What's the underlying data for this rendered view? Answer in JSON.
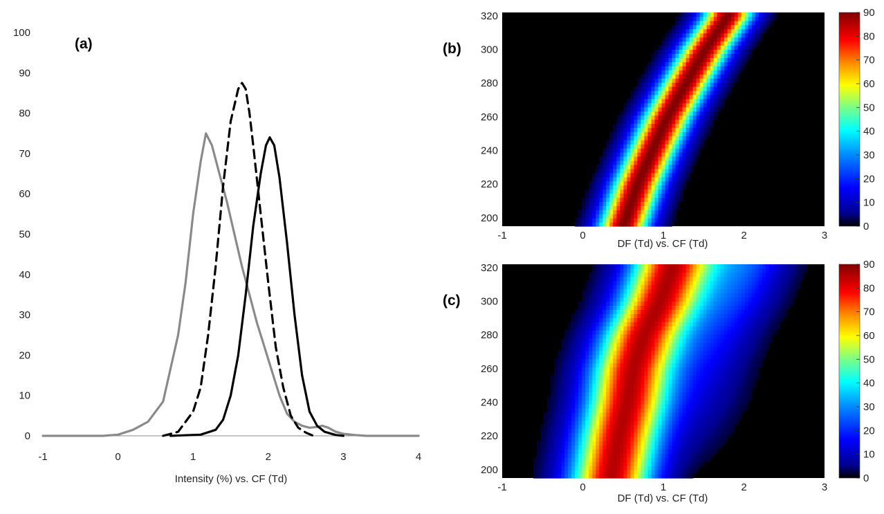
{
  "chart_data": [
    {
      "panel_label": "(a)",
      "type": "line",
      "xlabel": "Intensity (%) vs. CF (Td)",
      "ylabel": "",
      "xlim": [
        -1,
        4
      ],
      "ylim": [
        0,
        100
      ],
      "xticks": [
        "-1",
        "0",
        "1",
        "2",
        "3",
        "4"
      ],
      "yticks": [
        "0",
        "10",
        "20",
        "30",
        "40",
        "50",
        "60",
        "70",
        "80",
        "90",
        "100"
      ],
      "legend": "none",
      "series": [
        {
          "style": "solid-gray",
          "color": "#8a8a8a",
          "x": [
            -1.0,
            -0.2,
            0.0,
            0.2,
            0.4,
            0.6,
            0.8,
            0.9,
            1.0,
            1.1,
            1.17,
            1.25,
            1.35,
            1.45,
            1.55,
            1.65,
            1.75,
            1.85,
            1.95,
            2.05,
            2.15,
            2.25,
            2.35,
            2.45,
            2.55,
            2.65,
            2.72,
            2.8,
            2.9,
            3.0,
            3.15,
            3.3,
            4.0
          ],
          "y": [
            0,
            0,
            0.3,
            1.5,
            3.5,
            8.5,
            25,
            38,
            55,
            68,
            75,
            72,
            65,
            58,
            50,
            42,
            35,
            28,
            22,
            16,
            10,
            5.5,
            3.5,
            2.5,
            2.0,
            2.2,
            2.5,
            2.0,
            1.0,
            0.5,
            0.2,
            0,
            0
          ]
        },
        {
          "style": "dashed-black",
          "color": "#000000",
          "x": [
            0.6,
            0.8,
            1.0,
            1.1,
            1.2,
            1.3,
            1.4,
            1.5,
            1.6,
            1.65,
            1.7,
            1.75,
            1.8,
            1.9,
            2.0,
            2.1,
            2.2,
            2.3,
            2.4,
            2.5,
            2.6
          ],
          "y": [
            0,
            1.0,
            6,
            12,
            25,
            42,
            62,
            78,
            86,
            87.5,
            86,
            80,
            72,
            55,
            38,
            22,
            12,
            5,
            2,
            0.8,
            0
          ]
        },
        {
          "style": "solid-black",
          "color": "#000000",
          "x": [
            0.7,
            1.1,
            1.3,
            1.4,
            1.5,
            1.6,
            1.7,
            1.8,
            1.9,
            1.97,
            2.02,
            2.08,
            2.15,
            2.25,
            2.35,
            2.45,
            2.55,
            2.65,
            2.75,
            2.9,
            3.0
          ],
          "y": [
            0,
            0.3,
            1.5,
            4,
            10,
            20,
            35,
            52,
            65,
            72,
            74,
            72,
            64,
            48,
            30,
            15,
            6,
            2.5,
            1,
            0.2,
            0
          ]
        }
      ]
    },
    {
      "panel_label": "(b)",
      "type": "heatmap",
      "xlabel": "DF (Td) vs. CF (Td)",
      "xlim": [
        -1,
        3
      ],
      "ylim": [
        195,
        322
      ],
      "xticks": [
        "-1",
        "0",
        "1",
        "2",
        "3"
      ],
      "yticks": [
        "200",
        "220",
        "240",
        "260",
        "280",
        "300",
        "320"
      ],
      "colorbar": {
        "range": [
          0,
          90
        ],
        "ticks": [
          "0",
          "10",
          "20",
          "30",
          "40",
          "50",
          "60",
          "70",
          "80",
          "90"
        ]
      },
      "ridge": {
        "y": [
          195,
          220,
          240,
          260,
          280,
          300,
          320
        ],
        "center_x": [
          0.5,
          0.68,
          0.86,
          1.05,
          1.28,
          1.52,
          1.8
        ],
        "width_sigma": 0.22,
        "peak_value": 90
      }
    },
    {
      "panel_label": "(c)",
      "type": "heatmap",
      "xlabel": "DF (Td) vs. CF (Td)",
      "xlim": [
        -1,
        3
      ],
      "ylim": [
        195,
        322
      ],
      "xticks": [
        "-1",
        "0",
        "1",
        "2",
        "3"
      ],
      "yticks": [
        "200",
        "220",
        "240",
        "260",
        "280",
        "300",
        "320"
      ],
      "colorbar": {
        "range": [
          0,
          90
        ],
        "ticks": [
          "0",
          "10",
          "20",
          "30",
          "40",
          "50",
          "60",
          "70",
          "80",
          "90"
        ]
      },
      "ridge": {
        "y": [
          195,
          220,
          240,
          260,
          280,
          300,
          320
        ],
        "center_x": [
          0.35,
          0.45,
          0.55,
          0.62,
          0.75,
          0.95,
          1.1
        ],
        "width_sigma": 0.36,
        "peak_value": 85,
        "shoulder_extra_x": 0.9,
        "shoulder_value": 25
      }
    }
  ],
  "colormap": [
    "#00008f",
    "#0000ff",
    "#0080ff",
    "#00ffff",
    "#80ff80",
    "#ffff00",
    "#ff8000",
    "#ff0000",
    "#800000"
  ]
}
